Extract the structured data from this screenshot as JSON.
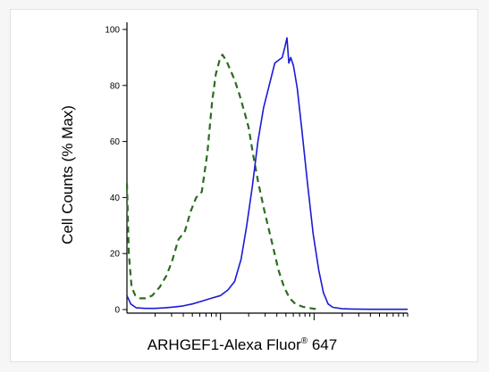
{
  "chart_data": {
    "type": "line",
    "title": "",
    "ylabel": "Cell Counts (% Max)",
    "xlabel": "ARHGEF1-Alexa Fluor",
    "xlabel_mark": "®",
    "xlabel_suffix": " 647",
    "y_ticks": [
      "0",
      "20",
      "40",
      "60",
      "80",
      "100"
    ],
    "ylim": [
      0,
      100
    ],
    "x_scale": "log",
    "xlim_decades": [
      0,
      3.0
    ],
    "x_major_decades": [
      1,
      2
    ],
    "grid": false,
    "legend": "none",
    "series": [
      {
        "color": "#2a6e1e",
        "style": "dashed",
        "x": [
          0.0,
          0.02,
          0.05,
          0.09,
          0.14,
          0.2,
          0.27,
          0.35,
          0.42,
          0.48,
          0.55,
          0.62,
          0.68,
          0.74,
          0.8,
          0.86,
          0.91,
          0.95,
          0.99,
          1.02,
          1.06,
          1.1,
          1.15,
          1.2,
          1.26,
          1.3,
          1.35,
          1.4,
          1.47,
          1.55,
          1.62,
          1.68,
          1.74,
          1.8,
          1.88,
          1.96,
          2.05
        ],
        "y": [
          45,
          20,
          8,
          5,
          4,
          4,
          5,
          8,
          12,
          17,
          25,
          28,
          35,
          40,
          42,
          56,
          74,
          84,
          89,
          91,
          89,
          86,
          82,
          77,
          70,
          65,
          55,
          46,
          35,
          24,
          14,
          8,
          4,
          2,
          1,
          0.5,
          0
        ]
      },
      {
        "color": "#1a1ad6",
        "style": "solid",
        "x": [
          0.0,
          0.04,
          0.1,
          0.2,
          0.3,
          0.4,
          0.5,
          0.6,
          0.7,
          0.8,
          0.9,
          1.0,
          1.08,
          1.15,
          1.22,
          1.28,
          1.34,
          1.4,
          1.46,
          1.52,
          1.58,
          1.62,
          1.66,
          1.69,
          1.71,
          1.73,
          1.75,
          1.78,
          1.82,
          1.87,
          1.93,
          1.99,
          2.05,
          2.1,
          2.15,
          2.2,
          2.3,
          2.4,
          2.6,
          3.0
        ],
        "y": [
          5,
          2,
          0.6,
          0.4,
          0.4,
          0.6,
          0.9,
          1.3,
          2,
          3,
          4,
          5,
          7,
          10,
          18,
          30,
          44,
          60,
          72,
          80,
          88,
          89,
          90,
          94,
          97,
          88,
          90,
          87,
          79,
          64,
          45,
          27,
          14,
          6,
          2,
          0.8,
          0.3,
          0.2,
          0.1,
          0.1
        ]
      }
    ]
  }
}
